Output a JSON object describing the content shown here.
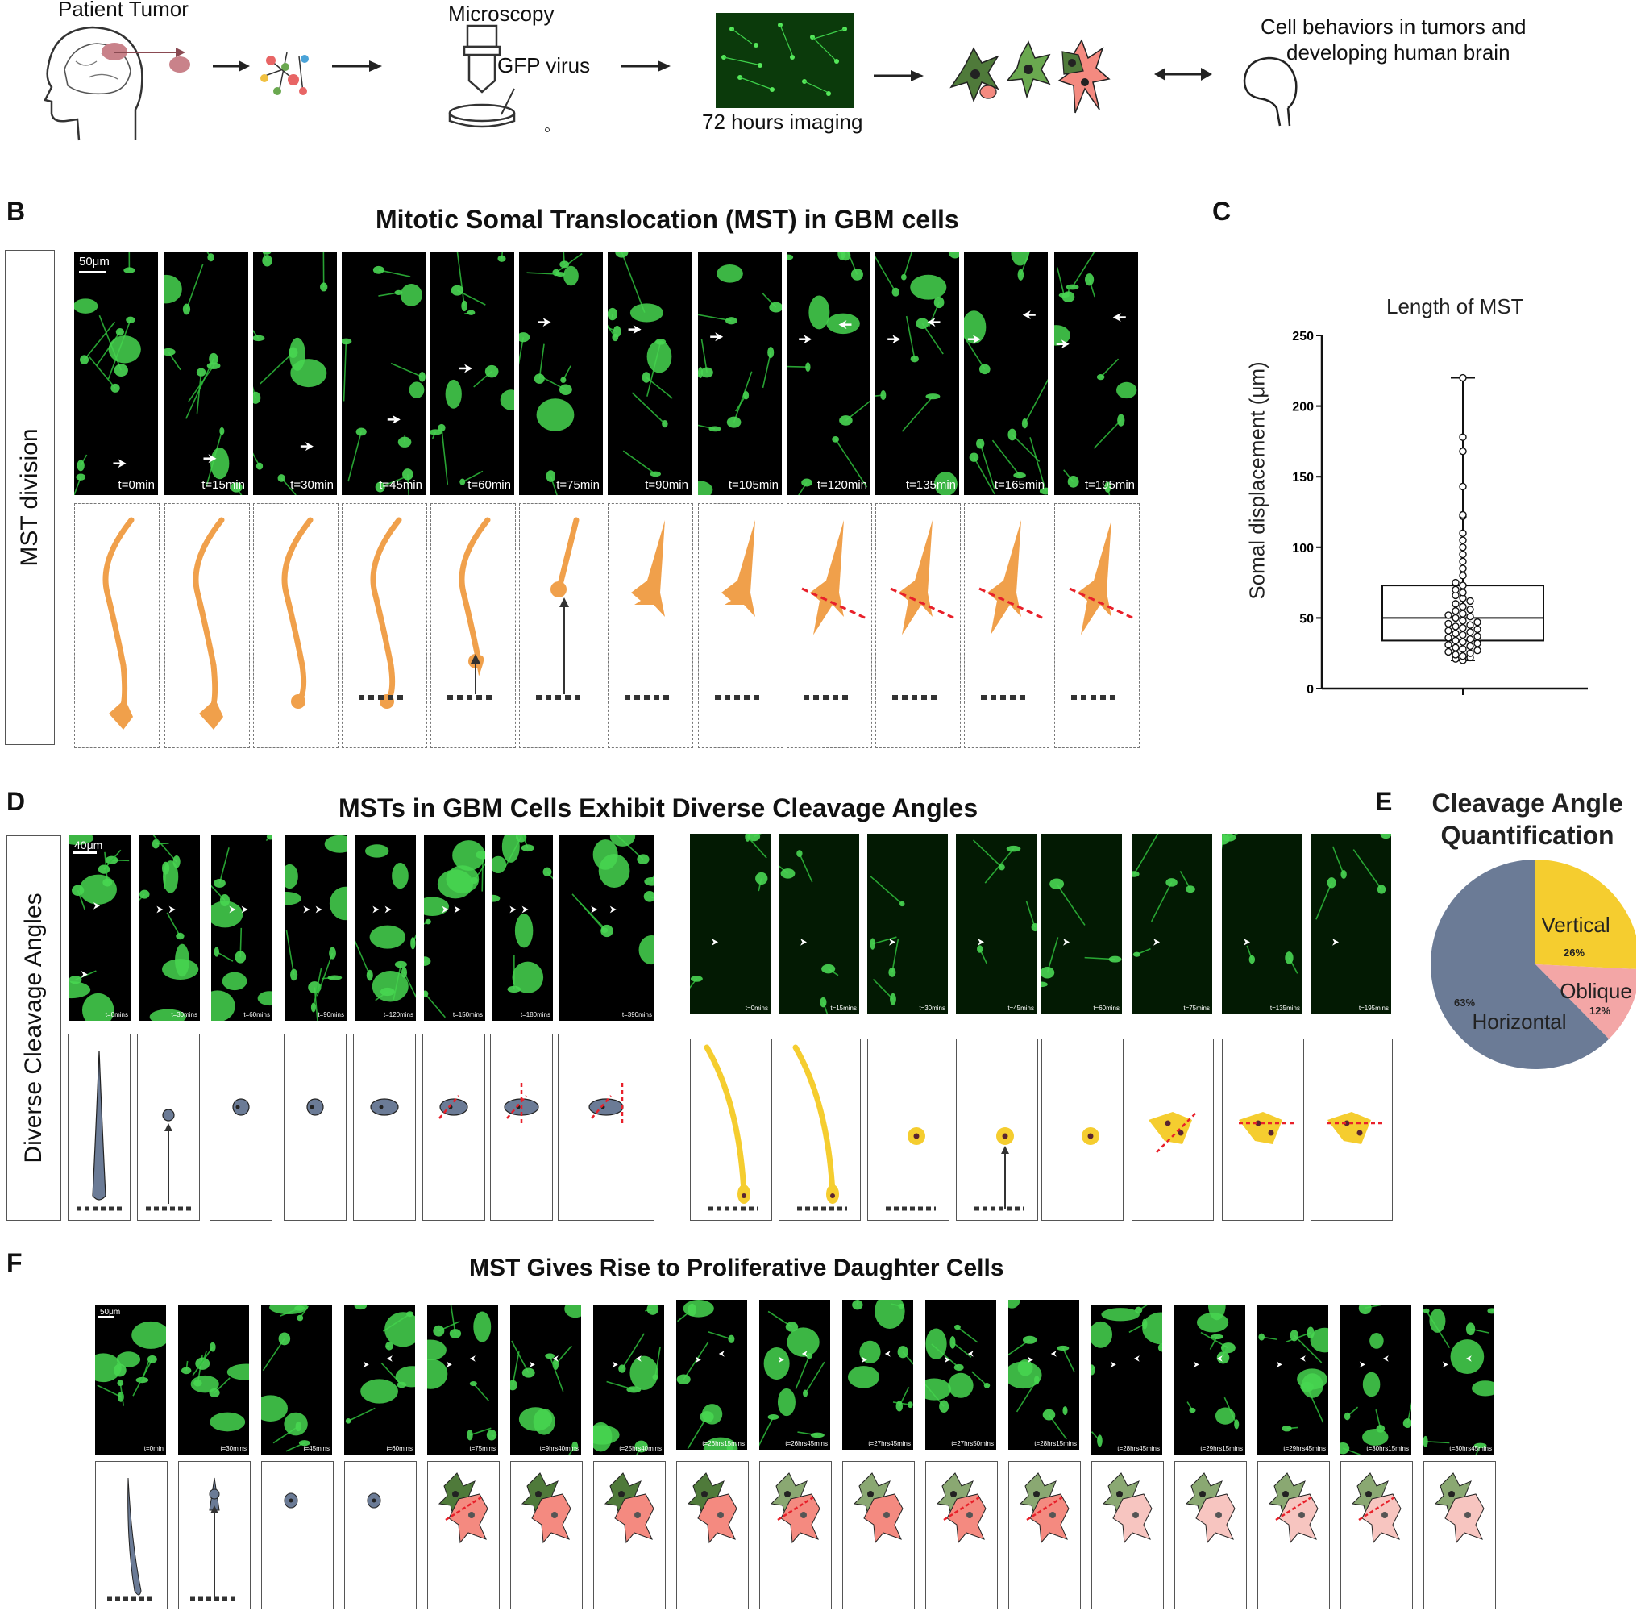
{
  "panel_a": {
    "patient_tumor": "Patient Tumor",
    "microscopy": "Microscopy",
    "gfp_virus": "GFP virus",
    "imaging": "72 hours imaging",
    "behaviors_line1": "Cell behaviors in tumors and",
    "behaviors_line2": "developing human brain"
  },
  "panel_b": {
    "letter": "B",
    "title": "Mitotic Somal Translocation (MST) in GBM cells",
    "row_label": "MST division",
    "scale_bar": "50μm",
    "timepoints": [
      "t=0min",
      "t=15min",
      "t=30min",
      "t=45min",
      "t=60min",
      "t=75min",
      "t=90min",
      "t=105min",
      "t=120min",
      "t=135min",
      "t=165min",
      "t=195min"
    ]
  },
  "panel_c": {
    "letter": "C",
    "chart_data": {
      "type": "box",
      "title": "Length of MST",
      "ylabel": "Somal displacement (μm)",
      "xlabel": "",
      "ylim": [
        0,
        250
      ],
      "yticks": [
        0,
        50,
        100,
        150,
        200,
        250
      ],
      "box": {
        "min": 20,
        "q1": 34,
        "median": 50,
        "q3": 73,
        "max": 220
      },
      "points": [
        20,
        21,
        22,
        23,
        24,
        25,
        26,
        27,
        28,
        29,
        30,
        31,
        32,
        33,
        34,
        35,
        36,
        37,
        38,
        39,
        40,
        41,
        42,
        43,
        44,
        45,
        46,
        47,
        48,
        50,
        51,
        52,
        53,
        55,
        56,
        58,
        60,
        62,
        64,
        66,
        68,
        70,
        73,
        75,
        80,
        85,
        90,
        95,
        100,
        105,
        110,
        122,
        123,
        143,
        168,
        178,
        220
      ]
    }
  },
  "panel_d": {
    "letter": "D",
    "title": "MSTs in GBM Cells Exhibit Diverse Cleavage Angles",
    "row_label": "Diverse Cleavage Angles",
    "scale_bar": "40μm",
    "left_timepoints": [
      "t=0mins",
      "t=30mins",
      "t=60mins",
      "t=90mins",
      "t=120mins",
      "t=150mins",
      "t=180mins",
      "t=390mins"
    ],
    "right_timepoints": [
      "t=0mins",
      "t=15mins",
      "t=30mins",
      "t=45mins",
      "t=60mins",
      "t=75mins",
      "t=135mins",
      "t=195mins"
    ]
  },
  "panel_e": {
    "letter": "E",
    "title_line1": "Cleavage Angle",
    "title_line2": "Quantification",
    "chart_data": {
      "type": "pie",
      "slices": [
        {
          "label": "Vertical",
          "percent_label": "26%",
          "value": 26,
          "color": "#f5cd2f"
        },
        {
          "label": "Oblique",
          "percent_label": "12%",
          "value": 12,
          "color": "#f3a6a6"
        },
        {
          "label": "Horizontal",
          "percent_label": "63%",
          "value": 63,
          "color": "#6b7b96"
        }
      ]
    }
  },
  "panel_f": {
    "letter": "F",
    "title": "MST Gives Rise to Proliferative Daughter Cells",
    "scale_bar": "50μm",
    "timepoints": [
      "t=0min",
      "t=30mins",
      "t=45mins",
      "t=60mins",
      "t=75mins",
      "t=9hrs40mins",
      "t=25hrs40mins",
      "t=26hrs15mins",
      "t=26hrs45mins",
      "t=27hrs45mins",
      "t=27hrs50mins",
      "t=28hrs15mins",
      "t=28hrs45mins",
      "t=29hrs15mins",
      "t=29hrs45mins",
      "t=30hrs15mins",
      "t=30hrs45mins"
    ]
  },
  "colors": {
    "gfp_green": "#3bd14a",
    "orange_cell": "#f0a04b",
    "blue_cell": "#6b7b96",
    "yellow_cell": "#f5cd2f",
    "cleavage_line": "#e8202a",
    "dark_green_cell": "#4f7a3a",
    "pink_cell": "#f48a80"
  }
}
